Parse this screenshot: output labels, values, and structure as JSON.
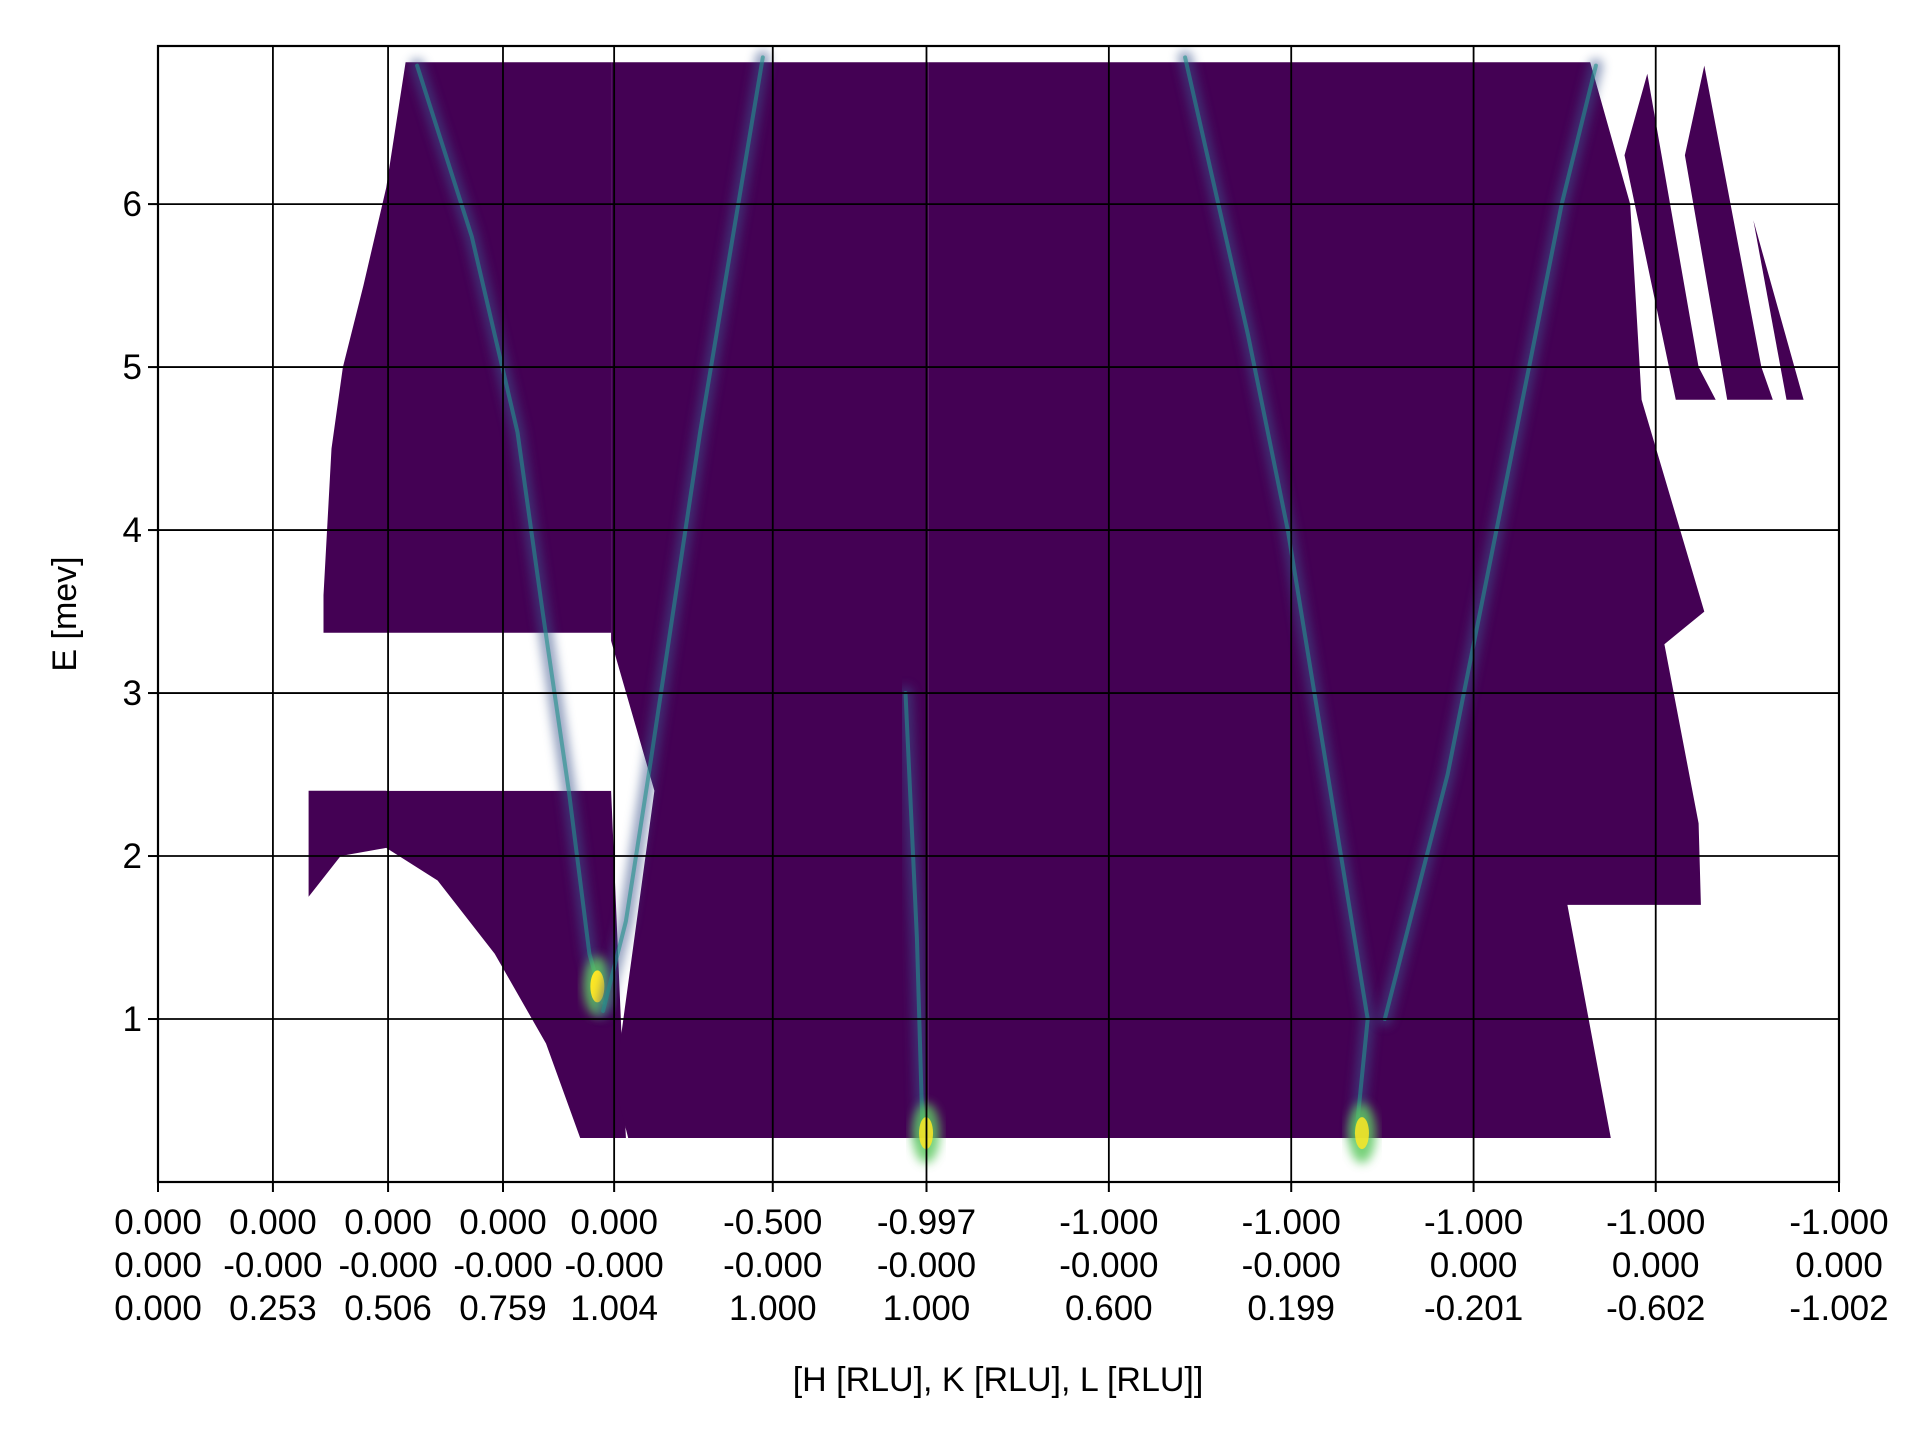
{
  "chart_data": {
    "type": "heatmap",
    "xlabel": "[H [RLU], K [RLU], L [RLU]]",
    "ylabel": "E [mev]",
    "colormap": "viridis",
    "colors": {
      "background": "#440154",
      "mid": "#3b528b",
      "teal": "#21918c",
      "green": "#5ec962",
      "peak": "#fde725"
    },
    "grid": true,
    "x_range": [
      0,
      14.73
    ],
    "y_range": [
      0,
      6.97
    ],
    "y_ticks": [
      1,
      2,
      3,
      4,
      5,
      6
    ],
    "y_tick_labels": [
      "1",
      "2",
      "3",
      "4",
      "5",
      "6"
    ],
    "x_ticks": [
      {
        "x": 0,
        "h": "0.000",
        "k": "0.000",
        "l": "0.000"
      },
      {
        "x": 1.007,
        "h": "0.000",
        "k": "-0.000",
        "l": "0.253"
      },
      {
        "x": 2.016,
        "h": "0.000",
        "k": "-0.000",
        "l": "0.506"
      },
      {
        "x": 3.023,
        "h": "0.000",
        "k": "-0.000",
        "l": "0.759"
      },
      {
        "x": 3.997,
        "h": "0.000",
        "k": "-0.000",
        "l": "1.004"
      },
      {
        "x": 5.387,
        "h": "-0.500",
        "k": "-0.000",
        "l": "1.000"
      },
      {
        "x": 6.734,
        "h": "-0.997",
        "k": "-0.000",
        "l": "1.000"
      },
      {
        "x": 8.332,
        "h": "-1.000",
        "k": "-0.000",
        "l": "0.600"
      },
      {
        "x": 9.93,
        "h": "-1.000",
        "k": "-0.000",
        "l": "0.199"
      },
      {
        "x": 11.528,
        "h": "-1.000",
        "k": "0.000",
        "l": "-0.201"
      },
      {
        "x": 13.124,
        "h": "-1.000",
        "k": "0.000",
        "l": "-0.602"
      },
      {
        "x": 14.73,
        "h": "-1.000",
        "k": "0.000",
        "l": "-1.002"
      }
    ],
    "coverage_regions": [
      {
        "name": "segment-1-upper",
        "polygon": [
          [
            2.17,
            6.87
          ],
          [
            3.97,
            6.87
          ],
          [
            3.97,
            3.37
          ],
          [
            1.45,
            3.37
          ],
          [
            1.45,
            3.6
          ],
          [
            1.52,
            4.5
          ],
          [
            1.62,
            5.0
          ],
          [
            1.8,
            5.5
          ],
          [
            2.0,
            6.1
          ]
        ]
      },
      {
        "name": "segment-1-lower",
        "polygon": [
          [
            1.32,
            2.4
          ],
          [
            3.97,
            2.4
          ],
          [
            4.1,
            0.27
          ],
          [
            3.7,
            0.27
          ],
          [
            3.4,
            0.85
          ],
          [
            2.95,
            1.4
          ],
          [
            2.45,
            1.85
          ],
          [
            2.0,
            2.05
          ],
          [
            1.6,
            2.0
          ],
          [
            1.32,
            1.75
          ]
        ]
      },
      {
        "name": "segment-2",
        "polygon": [
          [
            3.97,
            6.87
          ],
          [
            6.75,
            6.87
          ],
          [
            6.75,
            0.27
          ],
          [
            4.12,
            0.27
          ],
          [
            4.0,
            0.6
          ],
          [
            4.35,
            2.4
          ],
          [
            3.97,
            3.32
          ]
        ]
      },
      {
        "name": "segment-3",
        "polygon": [
          [
            6.75,
            6.87
          ],
          [
            12.55,
            6.87
          ],
          [
            12.9,
            6.0
          ],
          [
            13.0,
            4.8
          ],
          [
            13.55,
            3.5
          ],
          [
            13.2,
            3.3
          ],
          [
            13.5,
            2.2
          ],
          [
            13.52,
            1.7
          ],
          [
            12.35,
            1.7
          ],
          [
            12.73,
            0.27
          ],
          [
            6.75,
            0.27
          ]
        ]
      },
      {
        "name": "segment-4",
        "polygon": [
          [
            12.85,
            6.3
          ],
          [
            13.05,
            6.8
          ],
          [
            13.5,
            5.0
          ],
          [
            13.65,
            4.8
          ],
          [
            13.3,
            4.8
          ]
        ]
      },
      {
        "name": "segment-5",
        "polygon": [
          [
            13.38,
            6.3
          ],
          [
            13.55,
            6.85
          ],
          [
            14.05,
            5.0
          ],
          [
            14.15,
            4.8
          ],
          [
            13.75,
            4.8
          ]
        ]
      },
      {
        "name": "segment-6",
        "polygon": [
          [
            13.98,
            5.9
          ],
          [
            14.42,
            4.8
          ],
          [
            14.27,
            4.8
          ]
        ]
      }
    ],
    "gap_regions": [
      {
        "E_range": [
          2.4,
          3.32
        ],
        "x_range": [
          2.0,
          3.97
        ]
      }
    ],
    "dispersion_branches": [
      {
        "name": "branch-a",
        "points": [
          [
            2.27,
            6.85
          ],
          [
            2.75,
            5.8
          ],
          [
            3.15,
            4.6
          ],
          [
            3.37,
            3.5
          ],
          [
            3.6,
            2.4
          ],
          [
            3.78,
            1.4
          ],
          [
            3.9,
            1.1
          ]
        ],
        "peak": [
          3.85,
          1.2
        ],
        "peak_intensity": 1.0
      },
      {
        "name": "branch-b",
        "points": [
          [
            3.9,
            1.05
          ],
          [
            4.1,
            1.6
          ],
          [
            4.3,
            2.5
          ],
          [
            4.75,
            4.6
          ],
          [
            5.3,
            6.9
          ]
        ]
      },
      {
        "name": "branch-c",
        "points": [
          [
            9.0,
            6.9
          ],
          [
            9.55,
            5.2
          ],
          [
            9.9,
            4.0
          ],
          [
            10.25,
            2.5
          ],
          [
            10.6,
            1.0
          ],
          [
            10.5,
            0.3
          ]
        ],
        "peak": [
          10.55,
          0.3
        ],
        "peak_intensity": 0.85
      },
      {
        "name": "branch-d",
        "points": [
          [
            10.75,
            1.0
          ],
          [
            11.3,
            2.5
          ],
          [
            11.9,
            4.6
          ],
          [
            12.3,
            6.0
          ],
          [
            12.6,
            6.85
          ]
        ]
      },
      {
        "name": "branch-e",
        "points": [
          [
            6.7,
            0.3
          ],
          [
            6.65,
            1.5
          ],
          [
            6.55,
            3.0
          ]
        ],
        "peak": [
          6.73,
          0.3
        ],
        "peak_intensity": 0.85
      }
    ]
  }
}
